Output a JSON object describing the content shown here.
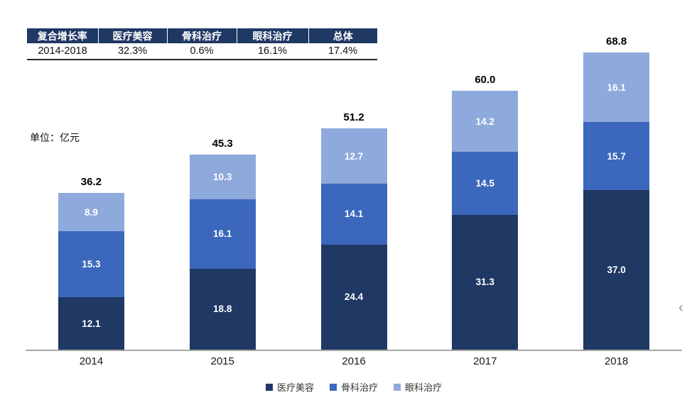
{
  "unit_label": "单位：亿元",
  "chevron_glyph": "‹",
  "table": {
    "headers": [
      "复合增长率",
      "医疗美容",
      "骨科治疗",
      "眼科治疗",
      "总体"
    ],
    "rows": [
      [
        "2014-2018",
        "32.3%",
        "0.6%",
        "16.1%",
        "17.4%"
      ]
    ]
  },
  "chart_data": {
    "type": "bar",
    "stacked": true,
    "title": "",
    "xlabel": "",
    "ylabel": "亿元",
    "ylim": [
      0,
      74.5
    ],
    "grid": false,
    "legend_position": "bottom",
    "categories": [
      "2014",
      "2015",
      "2016",
      "2017",
      "2018"
    ],
    "series": [
      {
        "name": "医疗美容",
        "color": "#1F3864",
        "values": [
          12.1,
          18.8,
          24.4,
          31.3,
          37.0
        ]
      },
      {
        "name": "骨科治疗",
        "color": "#3B68BC",
        "values": [
          15.3,
          16.1,
          14.1,
          14.5,
          15.7
        ]
      },
      {
        "name": "眼科治疗",
        "color": "#8EA9DB",
        "values": [
          8.9,
          10.3,
          12.7,
          14.2,
          16.1
        ]
      }
    ],
    "totals": [
      36.2,
      45.3,
      51.2,
      60.0,
      68.8
    ]
  },
  "colors": {
    "table_header_bg": "#1F3864",
    "axis_line": "#A6A6A6",
    "series_dark": "#1F3864",
    "series_mid": "#3B68BC",
    "series_light": "#8EA9DB"
  }
}
